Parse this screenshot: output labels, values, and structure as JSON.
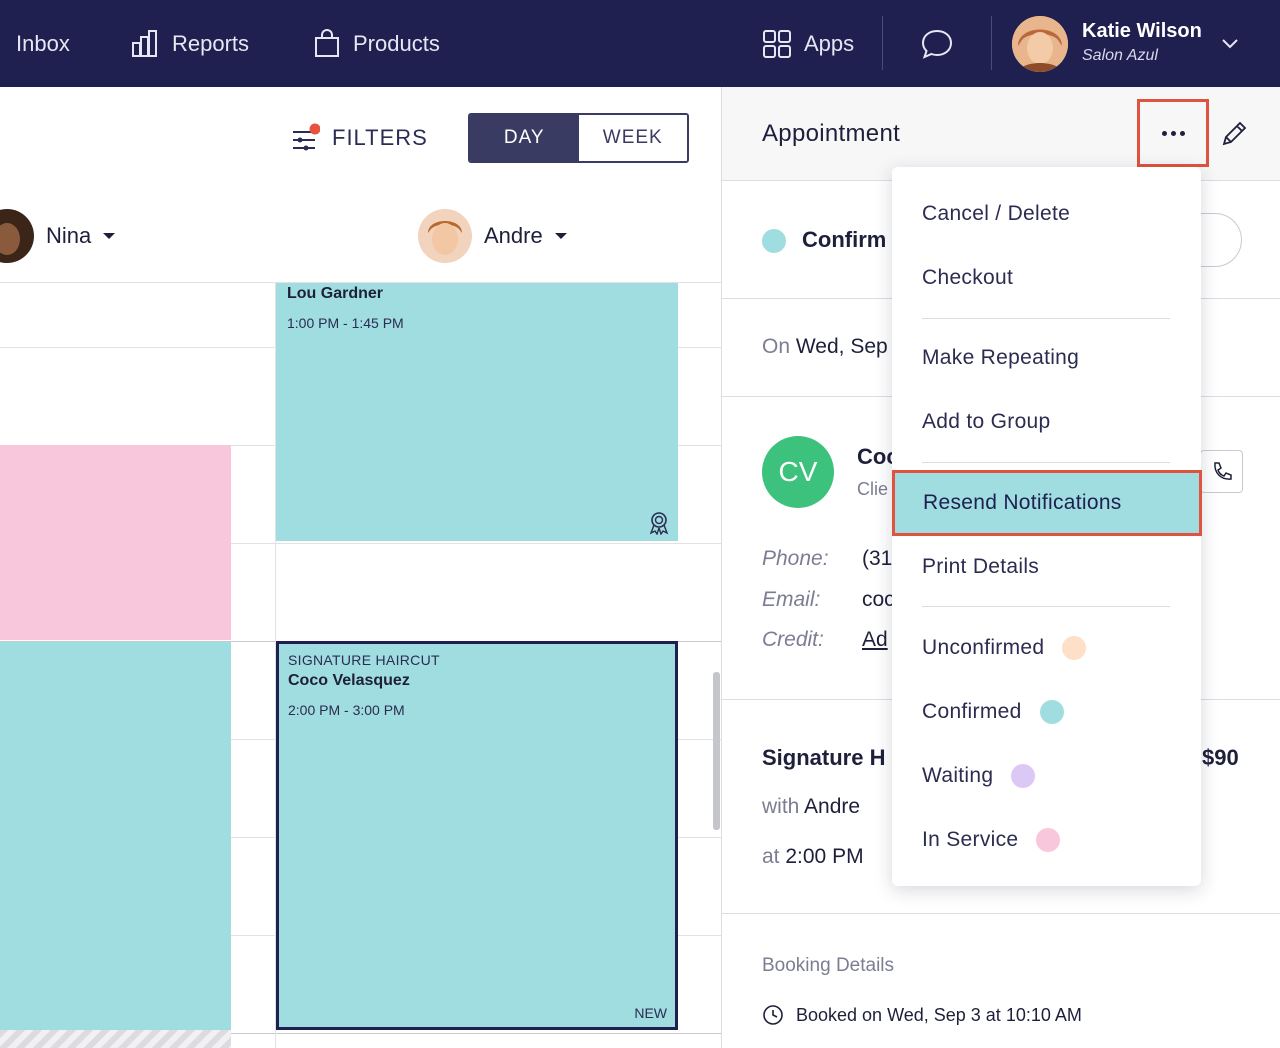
{
  "nav": {
    "inbox": "Inbox",
    "reports": "Reports",
    "products": "Products",
    "apps": "Apps",
    "user_name": "Katie Wilson",
    "user_salon": "Salon Azul"
  },
  "calendar": {
    "filters_label": "FILTERS",
    "view_day": "DAY",
    "view_week": "WEEK",
    "staff": [
      "Nina",
      "Andre"
    ],
    "appointments": [
      {
        "client": "Lou Gardner",
        "time": "1:00 PM - 1:45 PM",
        "color": "#9fdde0"
      },
      {
        "service": "SIGNATURE HAIRCUT",
        "client": "Coco Velasquez",
        "time": "2:00 PM - 3:00 PM",
        "tag": "NEW",
        "color": "#9fdde0"
      }
    ],
    "pink_block_color": "#f9c7dc"
  },
  "panel": {
    "title": "Appointment",
    "status": "Confirm",
    "date_prefix": "On",
    "date_value": "Wed, Sep",
    "client_initials": "CV",
    "client_name": "Coc",
    "client_sub": "Clie",
    "phone_label": "Phone:",
    "phone_value": "(31",
    "email_label": "Email:",
    "email_value": "coc",
    "credit_label": "Credit:",
    "credit_value": "Ad",
    "service_name": "Signature H",
    "service_price": "$90",
    "with_prefix": "with",
    "with_value": "Andre",
    "at_prefix": "at",
    "at_value": "2:00 PM",
    "booking_details_title": "Booking Details",
    "booked_on": "Booked on Wed, Sep 3 at 10:10 AM"
  },
  "menu": {
    "items": [
      "Cancel / Delete",
      "Checkout",
      "Make Repeating",
      "Add to Group",
      "Resend Notifications",
      "Print Details",
      "Unconfirmed",
      "Confirmed",
      "Waiting",
      "In Service"
    ],
    "status_colors": {
      "unconfirmed": "#fde0c7",
      "confirmed": "#9fdde0",
      "waiting": "#dcc8f5",
      "in_service": "#f9c7dc"
    }
  },
  "colors": {
    "nav_bg": "#1f2050",
    "accent_highlight": "#e0533f",
    "teal": "#9fdde0",
    "client_avatar": "#3cc27c"
  }
}
